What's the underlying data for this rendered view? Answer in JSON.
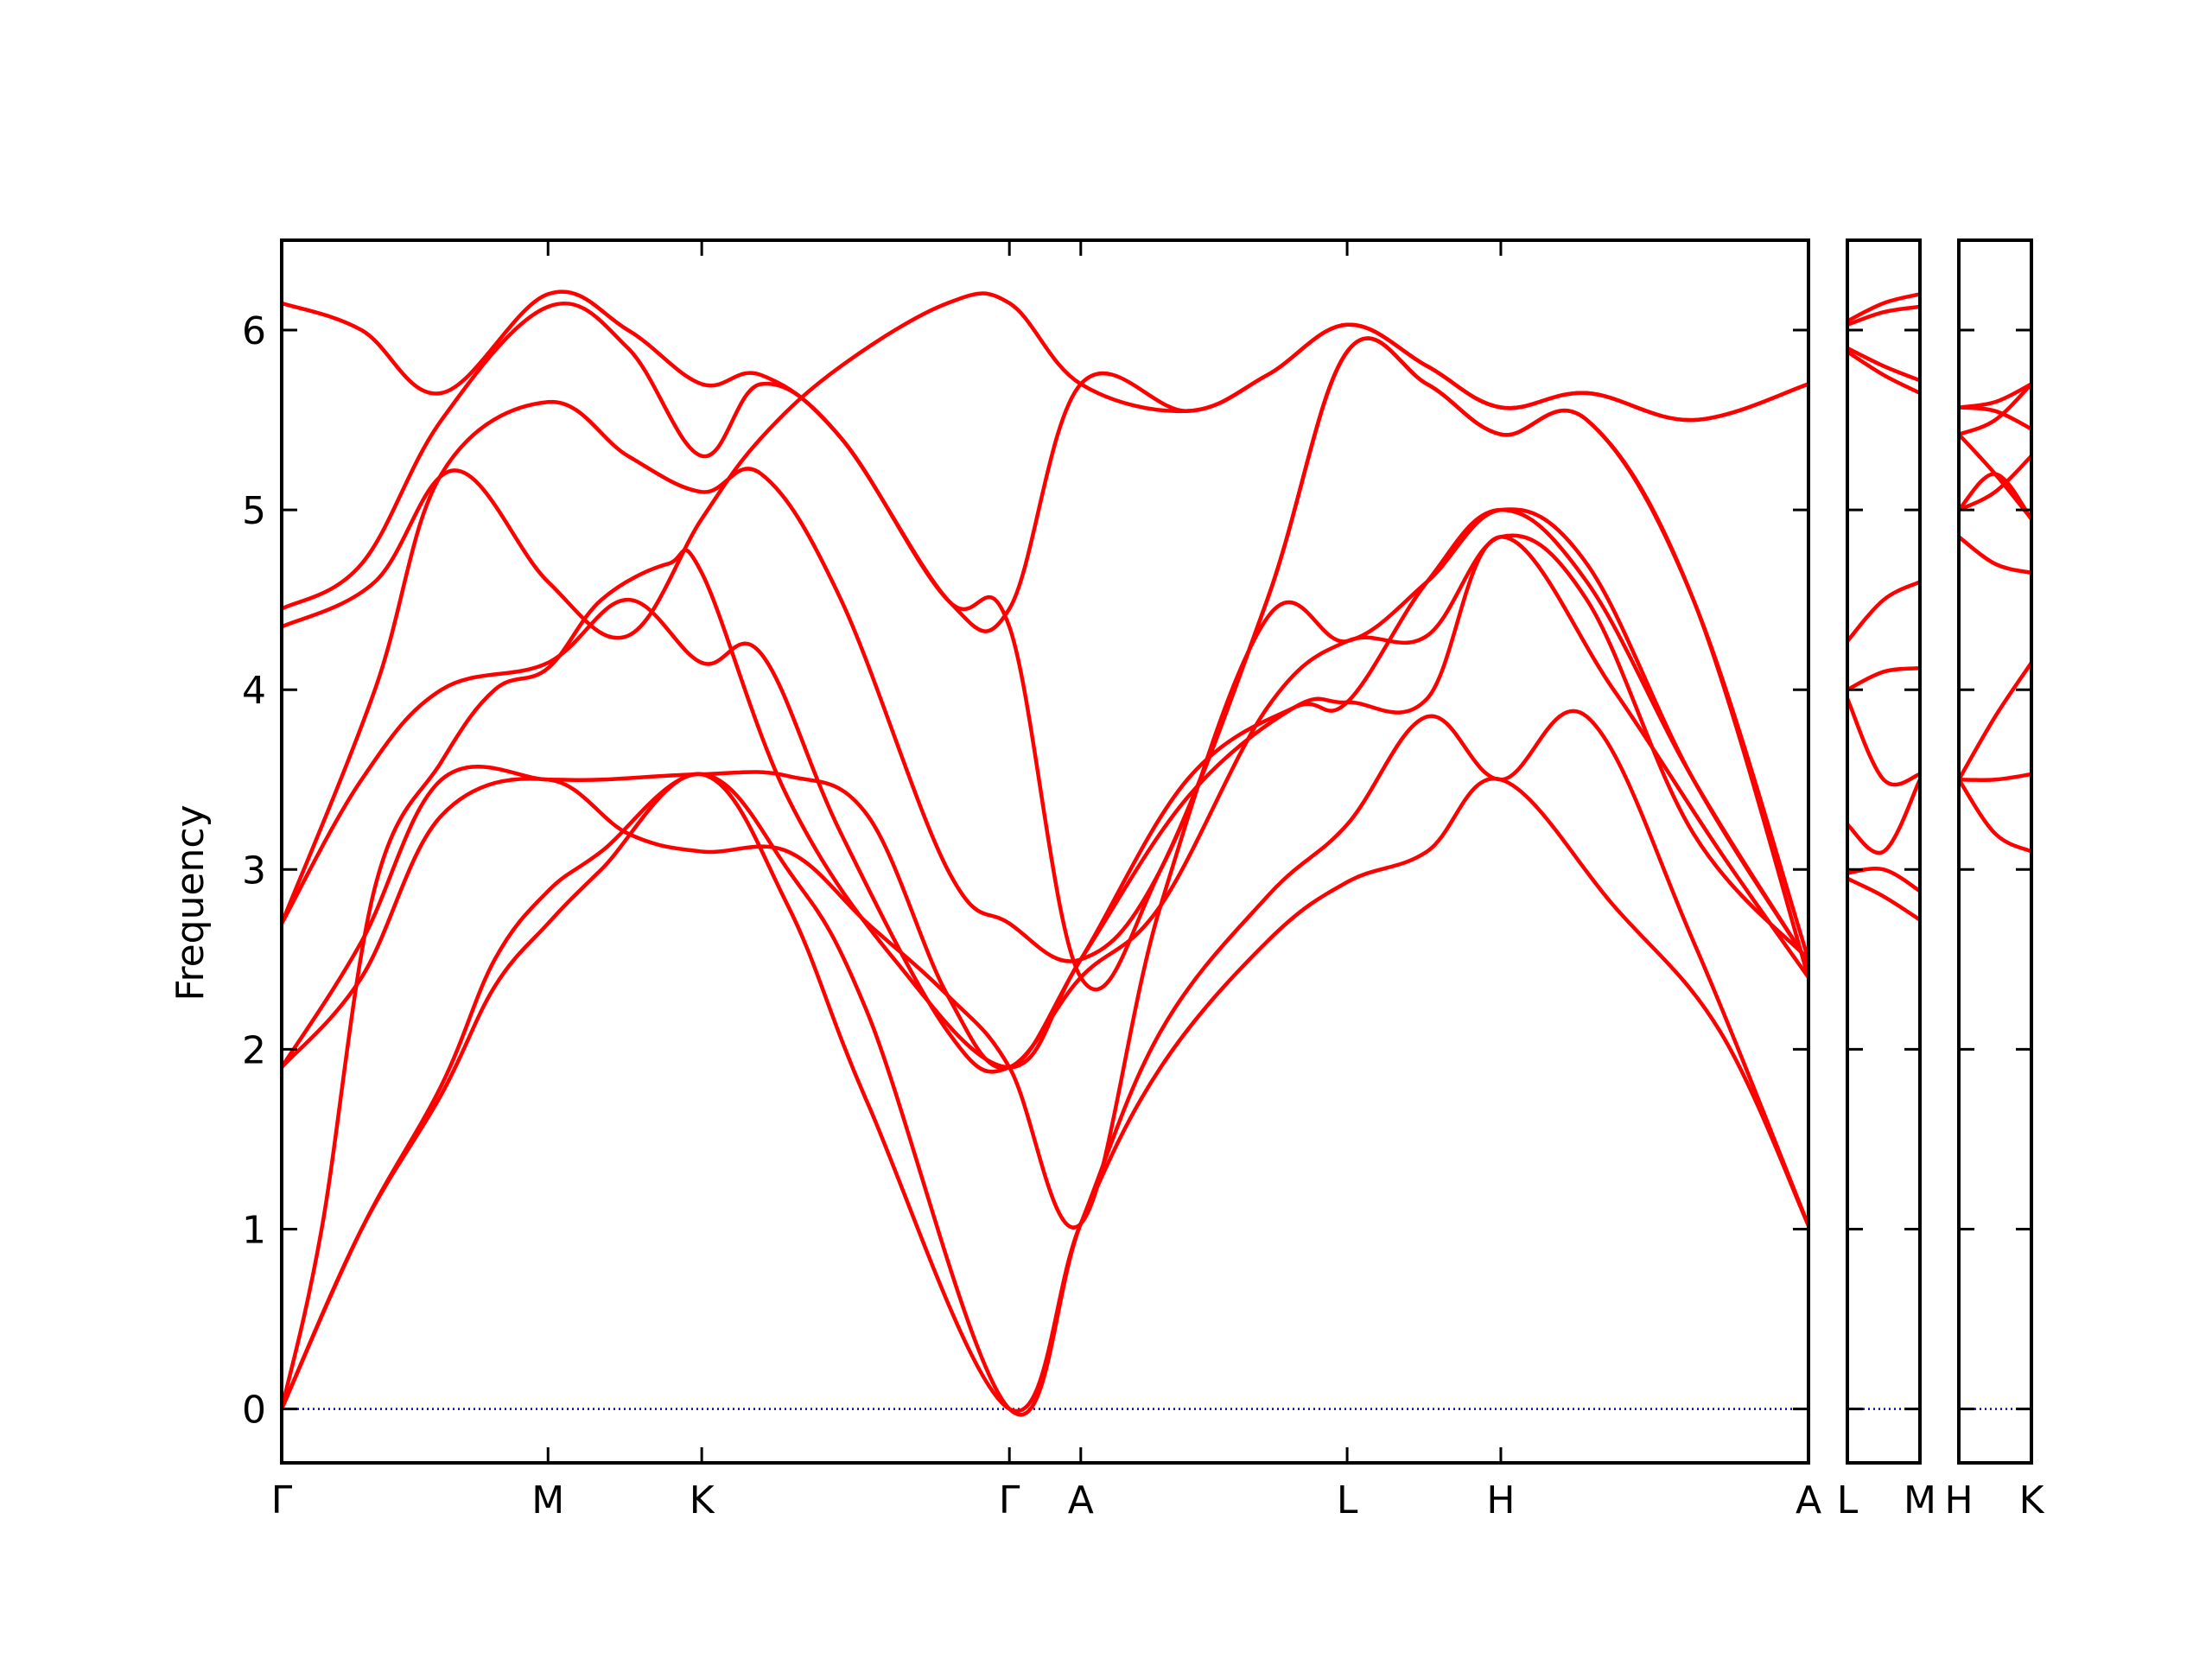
{
  "chart_data": {
    "type": "line",
    "ylabel": "Frequency",
    "ylim": [
      -0.3,
      6.5
    ],
    "yticks": [
      "0",
      "1",
      "2",
      "3",
      "4",
      "5",
      "6"
    ],
    "grid": false,
    "legend": "none",
    "line_color": "#ff0000",
    "zero_line_color": "#0000cc",
    "panels": [
      {
        "xticks": [
          {
            "label": "Γ",
            "x": 0.0
          },
          {
            "label": "M",
            "x": 1.0
          },
          {
            "label": "K",
            "x": 1.577
          },
          {
            "label": "Γ",
            "x": 2.732
          },
          {
            "label": "A",
            "x": 3.0
          },
          {
            "label": "L",
            "x": 4.0
          },
          {
            "label": "H",
            "x": 4.577
          },
          {
            "label": "A",
            "x": 5.732
          }
        ],
        "xlim": [
          0.0,
          5.732
        ],
        "bands": [
          [
            [
              0,
              0
            ],
            [
              0.3,
              1.0
            ],
            [
              0.6,
              1.75
            ],
            [
              0.8,
              2.35
            ],
            [
              1.0,
              2.7
            ],
            [
              1.2,
              3.0
            ],
            [
              1.577,
              3.53
            ],
            [
              1.9,
              2.8
            ],
            [
              2.2,
              1.7
            ],
            [
              2.732,
              0.0
            ],
            [
              3.0,
              1.03
            ],
            [
              3.3,
              1.9
            ],
            [
              3.7,
              2.6
            ],
            [
              4.0,
              2.93
            ],
            [
              4.3,
              3.1
            ],
            [
              4.577,
              3.5
            ],
            [
              5.0,
              2.8
            ],
            [
              5.4,
              2.1
            ],
            [
              5.732,
              1.02
            ]
          ],
          [
            [
              0,
              0
            ],
            [
              0.3,
              1.0
            ],
            [
              0.6,
              1.8
            ],
            [
              0.8,
              2.5
            ],
            [
              1.0,
              2.88
            ],
            [
              1.2,
              3.1
            ],
            [
              1.577,
              3.53
            ],
            [
              1.9,
              3.0
            ],
            [
              2.2,
              2.2
            ],
            [
              2.732,
              0.0
            ],
            [
              3.0,
              1.03
            ],
            [
              3.3,
              2.1
            ],
            [
              3.7,
              2.85
            ],
            [
              4.0,
              3.25
            ],
            [
              4.3,
              3.85
            ],
            [
              4.577,
              3.5
            ],
            [
              4.9,
              3.85
            ],
            [
              5.3,
              2.6
            ],
            [
              5.732,
              1.02
            ]
          ],
          [
            [
              0,
              0
            ],
            [
              0.15,
              1.0
            ],
            [
              0.35,
              2.9
            ],
            [
              0.6,
              3.6
            ],
            [
              0.8,
              4.0
            ],
            [
              1.0,
              4.12
            ],
            [
              1.2,
              4.5
            ],
            [
              1.45,
              4.7
            ],
            [
              1.577,
              4.65
            ],
            [
              1.9,
              3.4
            ],
            [
              2.3,
              2.5
            ],
            [
              2.732,
              1.9
            ],
            [
              3.0,
              2.5
            ],
            [
              3.4,
              3.4
            ],
            [
              3.8,
              3.9
            ],
            [
              4.0,
              3.93
            ],
            [
              4.3,
              3.95
            ],
            [
              4.577,
              4.85
            ],
            [
              5.0,
              4.0
            ],
            [
              5.4,
              3.1
            ],
            [
              5.732,
              2.4
            ]
          ],
          [
            [
              0,
              1.9
            ],
            [
              0.3,
              2.4
            ],
            [
              0.6,
              3.3
            ],
            [
              1.0,
              3.5
            ],
            [
              1.3,
              3.2
            ],
            [
              1.577,
              3.1
            ],
            [
              1.9,
              3.1
            ],
            [
              2.2,
              2.7
            ],
            [
              2.5,
              2.3
            ],
            [
              2.732,
              1.9
            ],
            [
              3.0,
              1.03
            ],
            [
              3.3,
              2.8
            ],
            [
              3.7,
              4.4
            ],
            [
              4.0,
              4.27
            ],
            [
              4.3,
              4.6
            ],
            [
              4.577,
              5.0
            ],
            [
              4.9,
              4.7
            ],
            [
              5.3,
              3.5
            ],
            [
              5.732,
              2.48
            ]
          ],
          [
            [
              0,
              1.9
            ],
            [
              0.3,
              2.6
            ],
            [
              0.6,
              3.5
            ],
            [
              1.0,
              3.5
            ],
            [
              1.2,
              3.5
            ],
            [
              1.577,
              3.53
            ],
            [
              1.9,
              3.52
            ],
            [
              2.2,
              3.3
            ],
            [
              2.5,
              2.3
            ],
            [
              2.732,
              1.9
            ],
            [
              3.0,
              2.5
            ],
            [
              3.4,
              3.5
            ],
            [
              3.8,
              3.9
            ],
            [
              4.0,
              3.93
            ],
            [
              4.3,
              4.6
            ],
            [
              4.577,
              5.0
            ],
            [
              4.9,
              4.6
            ],
            [
              5.3,
              3.5
            ],
            [
              5.732,
              2.48
            ]
          ],
          [
            [
              0,
              2.7
            ],
            [
              0.3,
              3.5
            ],
            [
              0.6,
              4.0
            ],
            [
              1.0,
              4.15
            ],
            [
              1.3,
              4.5
            ],
            [
              1.577,
              4.15
            ],
            [
              1.8,
              4.2
            ],
            [
              2.1,
              3.2
            ],
            [
              2.5,
              2.1
            ],
            [
              2.732,
              1.9
            ],
            [
              3.0,
              2.4
            ],
            [
              3.3,
              2.8
            ],
            [
              3.7,
              3.9
            ],
            [
              4.0,
              4.27
            ],
            [
              4.3,
              4.3
            ],
            [
              4.577,
              4.85
            ],
            [
              4.9,
              4.5
            ],
            [
              5.3,
              3.2
            ],
            [
              5.732,
              2.5
            ]
          ],
          [
            [
              0,
              2.7
            ],
            [
              0.35,
              4.0
            ],
            [
              0.6,
              5.2
            ],
            [
              1.0,
              5.6
            ],
            [
              1.3,
              5.3
            ],
            [
              1.577,
              5.1
            ],
            [
              1.8,
              5.2
            ],
            [
              2.1,
              4.5
            ],
            [
              2.5,
              3.0
            ],
            [
              2.732,
              2.7
            ],
            [
              3.0,
              2.5
            ],
            [
              3.3,
              3.0
            ],
            [
              3.7,
              4.5
            ],
            [
              4.0,
              5.88
            ],
            [
              4.3,
              5.7
            ],
            [
              4.577,
              5.42
            ],
            [
              4.9,
              5.5
            ],
            [
              5.3,
              4.5
            ],
            [
              5.732,
              2.5
            ]
          ],
          [
            [
              0,
              4.35
            ],
            [
              0.35,
              4.6
            ],
            [
              0.65,
              5.22
            ],
            [
              1.0,
              4.6
            ],
            [
              1.3,
              4.3
            ],
            [
              1.577,
              4.95
            ],
            [
              1.8,
              5.4
            ],
            [
              2.1,
              5.8
            ],
            [
              2.5,
              6.15
            ],
            [
              2.732,
              6.15
            ],
            [
              3.0,
              5.7
            ],
            [
              3.4,
              5.55
            ],
            [
              3.7,
              5.75
            ],
            [
              4.0,
              6.03
            ],
            [
              4.3,
              5.8
            ],
            [
              4.577,
              5.57
            ],
            [
              4.9,
              5.65
            ],
            [
              5.3,
              5.5
            ],
            [
              5.732,
              5.7
            ]
          ],
          [
            [
              0,
              4.45
            ],
            [
              0.3,
              4.7
            ],
            [
              0.6,
              5.5
            ],
            [
              1.0,
              6.13
            ],
            [
              1.3,
              5.9
            ],
            [
              1.577,
              5.3
            ],
            [
              1.8,
              5.7
            ],
            [
              2.1,
              5.4
            ],
            [
              2.5,
              4.5
            ],
            [
              2.732,
              4.45
            ],
            [
              3.0,
              5.7
            ],
            [
              3.4,
              5.55
            ],
            [
              3.7,
              5.75
            ],
            [
              4.0,
              6.03
            ],
            [
              4.3,
              5.8
            ],
            [
              4.577,
              5.57
            ],
            [
              4.9,
              5.65
            ],
            [
              5.3,
              5.5
            ],
            [
              5.732,
              5.7
            ]
          ],
          [
            [
              0,
              6.15
            ],
            [
              0.3,
              6.0
            ],
            [
              0.6,
              5.65
            ],
            [
              1.0,
              6.2
            ],
            [
              1.3,
              6.0
            ],
            [
              1.577,
              5.7
            ],
            [
              1.8,
              5.75
            ],
            [
              2.1,
              5.4
            ],
            [
              2.5,
              4.5
            ],
            [
              2.732,
              4.35
            ],
            [
              3.0,
              2.4
            ],
            [
              3.3,
              3.0
            ],
            [
              3.7,
              4.5
            ],
            [
              4.0,
              5.88
            ],
            [
              4.3,
              5.7
            ],
            [
              4.577,
              5.42
            ],
            [
              4.9,
              5.5
            ],
            [
              5.3,
              4.5
            ],
            [
              5.732,
              2.4
            ]
          ]
        ]
      },
      {
        "xticks": [
          {
            "label": "L",
            "x": 0.0
          },
          {
            "label": "M",
            "x": 0.5
          }
        ],
        "xlim": [
          0.0,
          0.5
        ],
        "bands": [
          [
            [
              0,
              2.95
            ],
            [
              0.25,
              2.85
            ],
            [
              0.5,
              2.72
            ]
          ],
          [
            [
              0,
              2.98
            ],
            [
              0.25,
              3.0
            ],
            [
              0.5,
              2.88
            ]
          ],
          [
            [
              0,
              3.25
            ],
            [
              0.25,
              3.1
            ],
            [
              0.5,
              3.5
            ]
          ],
          [
            [
              0,
              3.95
            ],
            [
              0.25,
              3.5
            ],
            [
              0.5,
              3.53
            ]
          ],
          [
            [
              0,
              4.0
            ],
            [
              0.25,
              4.1
            ],
            [
              0.5,
              4.12
            ]
          ],
          [
            [
              0,
              4.27
            ],
            [
              0.25,
              4.5
            ],
            [
              0.5,
              4.6
            ]
          ],
          [
            [
              0,
              5.88
            ],
            [
              0.25,
              5.75
            ],
            [
              0.5,
              5.65
            ]
          ],
          [
            [
              0,
              5.9
            ],
            [
              0.25,
              5.8
            ],
            [
              0.5,
              5.72
            ]
          ],
          [
            [
              0,
              6.03
            ],
            [
              0.25,
              6.1
            ],
            [
              0.5,
              6.13
            ]
          ],
          [
            [
              0,
              6.05
            ],
            [
              0.25,
              6.15
            ],
            [
              0.5,
              6.2
            ]
          ]
        ]
      },
      {
        "xticks": [
          {
            "label": "H",
            "x": 0.0
          },
          {
            "label": "K",
            "x": 0.5
          }
        ],
        "xlim": [
          0.0,
          0.5
        ],
        "bands": [
          [
            [
              0,
              3.5
            ],
            [
              0.25,
              3.5
            ],
            [
              0.5,
              3.53
            ]
          ],
          [
            [
              0,
              3.5
            ],
            [
              0.25,
              3.2
            ],
            [
              0.5,
              3.1
            ]
          ],
          [
            [
              0,
              3.5
            ],
            [
              0.25,
              3.85
            ],
            [
              0.5,
              4.15
            ]
          ],
          [
            [
              0,
              4.85
            ],
            [
              0.25,
              4.7
            ],
            [
              0.5,
              4.65
            ]
          ],
          [
            [
              0,
              5.0
            ],
            [
              0.25,
              5.1
            ],
            [
              0.5,
              5.3
            ]
          ],
          [
            [
              0,
              5.0
            ],
            [
              0.25,
              5.2
            ],
            [
              0.5,
              4.95
            ]
          ],
          [
            [
              0,
              5.42
            ],
            [
              0.25,
              5.2
            ],
            [
              0.5,
              4.95
            ]
          ],
          [
            [
              0,
              5.42
            ],
            [
              0.25,
              5.5
            ],
            [
              0.5,
              5.7
            ]
          ],
          [
            [
              0,
              5.57
            ],
            [
              0.25,
              5.55
            ],
            [
              0.5,
              5.45
            ]
          ],
          [
            [
              0,
              5.57
            ],
            [
              0.25,
              5.6
            ],
            [
              0.5,
              5.7
            ]
          ]
        ]
      }
    ]
  }
}
